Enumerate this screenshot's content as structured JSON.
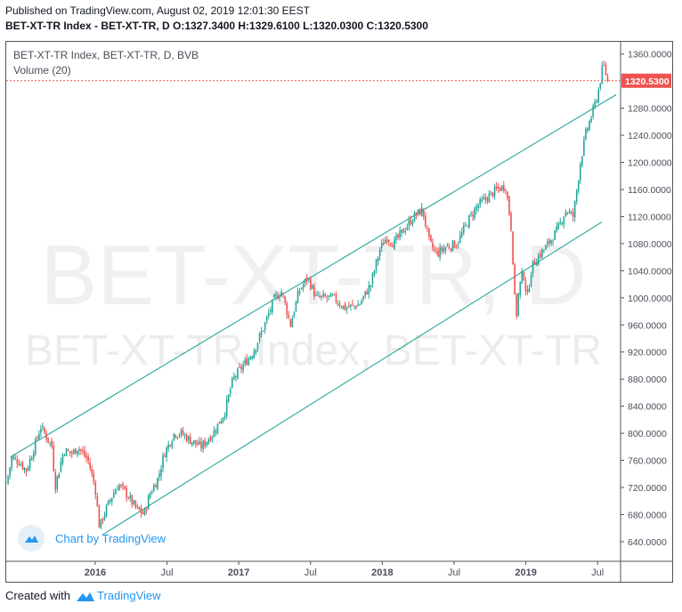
{
  "header": {
    "published": "Published on TradingView.com, August 02, 2019 12:01:30 EEST",
    "ohlc": "BET-XT-TR Index - BET-XT-TR, D  O:1327.3400 H:1329.6100 L:1320.0300 C:1320.5300"
  },
  "legend": {
    "symbol": "BET-XT-TR Index, BET-XT-TR, D, BVB",
    "volume": "Volume (20)"
  },
  "watermark": {
    "big": "BET-XT-TR, D",
    "small": "BET-XT-TR Index, BET-XT-TR"
  },
  "badge": {
    "text": "Chart by TradingView"
  },
  "footer": {
    "created": "Created with",
    "brand": "TradingView"
  },
  "colors": {
    "up": "#26a69a",
    "down": "#ef5350",
    "channel": "#26a69a",
    "price_line": "#ef5350",
    "axis_text": "#4a4e59"
  },
  "chart_data": {
    "type": "candlestick",
    "title": "BET-XT-TR Index, BET-XT-TR, D, BVB",
    "last_price_label": "1320.5300",
    "last_price": 1320.53,
    "y_ticks": [
      {
        "label": "1360.0000",
        "v": 1360
      },
      {
        "label": "1320.0000",
        "v": 1320
      },
      {
        "label": "1280.0000",
        "v": 1280
      },
      {
        "label": "1240.0000",
        "v": 1240
      },
      {
        "label": "1200.0000",
        "v": 1200
      },
      {
        "label": "1160.0000",
        "v": 1160
      },
      {
        "label": "1120.0000",
        "v": 1120
      },
      {
        "label": "1080.0000",
        "v": 1080
      },
      {
        "label": "1040.0000",
        "v": 1040
      },
      {
        "label": "1000.0000",
        "v": 1000
      },
      {
        "label": "960.0000",
        "v": 960
      },
      {
        "label": "920.0000",
        "v": 920
      },
      {
        "label": "880.0000",
        "v": 880
      },
      {
        "label": "840.0000",
        "v": 840
      },
      {
        "label": "800.0000",
        "v": 800
      },
      {
        "label": "760.0000",
        "v": 760
      },
      {
        "label": "720.0000",
        "v": 720
      },
      {
        "label": "680.0000",
        "v": 680
      },
      {
        "label": "640.0000",
        "v": 640
      }
    ],
    "x_ticks": [
      {
        "label": "2016",
        "t": 2016.0,
        "bold": true
      },
      {
        "label": "Jul",
        "t": 2016.5,
        "bold": false
      },
      {
        "label": "2017",
        "t": 2017.0,
        "bold": true
      },
      {
        "label": "Jul",
        "t": 2017.5,
        "bold": false
      },
      {
        "label": "2018",
        "t": 2018.0,
        "bold": true
      },
      {
        "label": "Jul",
        "t": 2018.5,
        "bold": false
      },
      {
        "label": "2019",
        "t": 2019.0,
        "bold": true
      },
      {
        "label": "Jul",
        "t": 2019.5,
        "bold": false
      }
    ],
    "x_range": [
      2015.38,
      2019.66
    ],
    "y_range": [
      611,
      1378
    ],
    "series_close": [
      [
        2015.38,
        725
      ],
      [
        2015.42,
        765
      ],
      [
        2015.47,
        758
      ],
      [
        2015.52,
        745
      ],
      [
        2015.56,
        770
      ],
      [
        2015.62,
        810
      ],
      [
        2015.66,
        795
      ],
      [
        2015.7,
        780
      ],
      [
        2015.72,
        720
      ],
      [
        2015.78,
        775
      ],
      [
        2015.84,
        770
      ],
      [
        2015.88,
        780
      ],
      [
        2015.95,
        760
      ],
      [
        2016.0,
        720
      ],
      [
        2016.03,
        660
      ],
      [
        2016.06,
        680
      ],
      [
        2016.1,
        700
      ],
      [
        2016.16,
        725
      ],
      [
        2016.22,
        710
      ],
      [
        2016.28,
        690
      ],
      [
        2016.34,
        680
      ],
      [
        2016.38,
        710
      ],
      [
        2016.44,
        735
      ],
      [
        2016.48,
        770
      ],
      [
        2016.55,
        800
      ],
      [
        2016.6,
        800
      ],
      [
        2016.66,
        790
      ],
      [
        2016.74,
        780
      ],
      [
        2016.82,
        800
      ],
      [
        2016.9,
        830
      ],
      [
        2016.96,
        880
      ],
      [
        2017.03,
        900
      ],
      [
        2017.1,
        920
      ],
      [
        2017.18,
        960
      ],
      [
        2017.25,
        1000
      ],
      [
        2017.3,
        1010
      ],
      [
        2017.36,
        960
      ],
      [
        2017.42,
        1010
      ],
      [
        2017.48,
        1030
      ],
      [
        2017.54,
        1000
      ],
      [
        2017.6,
        1000
      ],
      [
        2017.66,
        1000
      ],
      [
        2017.74,
        985
      ],
      [
        2017.84,
        990
      ],
      [
        2017.92,
        1020
      ],
      [
        2017.98,
        1070
      ],
      [
        2018.03,
        1090
      ],
      [
        2018.08,
        1080
      ],
      [
        2018.15,
        1100
      ],
      [
        2018.22,
        1120
      ],
      [
        2018.28,
        1130
      ],
      [
        2018.33,
        1080
      ],
      [
        2018.38,
        1065
      ],
      [
        2018.44,
        1075
      ],
      [
        2018.52,
        1080
      ],
      [
        2018.6,
        1115
      ],
      [
        2018.66,
        1135
      ],
      [
        2018.74,
        1150
      ],
      [
        2018.8,
        1160
      ],
      [
        2018.86,
        1165
      ],
      [
        2018.9,
        1100
      ],
      [
        2018.93,
        965
      ],
      [
        2018.95,
        1010
      ],
      [
        2018.98,
        1040
      ],
      [
        2019.01,
        1000
      ],
      [
        2019.04,
        1045
      ],
      [
        2019.08,
        1060
      ],
      [
        2019.14,
        1075
      ],
      [
        2019.22,
        1100
      ],
      [
        2019.28,
        1130
      ],
      [
        2019.33,
        1120
      ],
      [
        2019.38,
        1200
      ],
      [
        2019.42,
        1245
      ],
      [
        2019.46,
        1270
      ],
      [
        2019.5,
        1300
      ],
      [
        2019.54,
        1345
      ],
      [
        2019.57,
        1320
      ]
    ],
    "channel_lines": [
      {
        "from": [
          2015.41,
          765
        ],
        "to": [
          2019.63,
          1300
        ]
      },
      {
        "from": [
          2016.05,
          650
        ],
        "to": [
          2019.53,
          1112
        ]
      }
    ]
  }
}
